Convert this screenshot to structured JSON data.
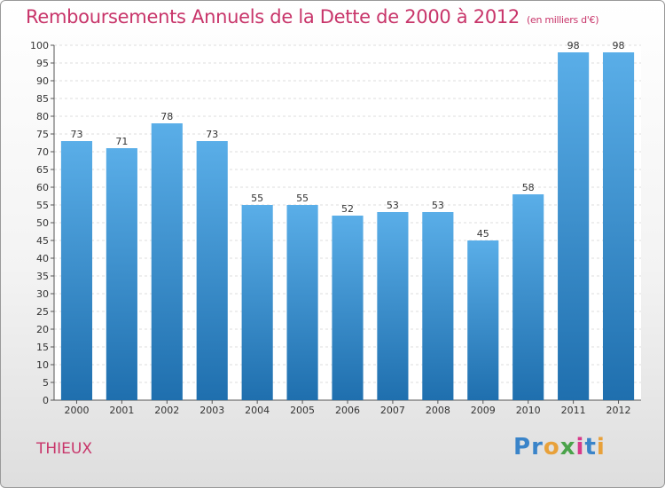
{
  "title": "Remboursements Annuels de la Dette de 2000 à 2012",
  "unit": "(en milliers d'€)",
  "commune": "THIEUX",
  "logo": {
    "text": "Proxiti",
    "letters": [
      "P",
      "r",
      "o",
      "x",
      "i",
      "t",
      "i"
    ],
    "colors": [
      "#3a84c9",
      "#3a84c9",
      "#e8a13a",
      "#4aa34a",
      "#d83a8a",
      "#3a84c9",
      "#e8a13a"
    ]
  },
  "chart_data": {
    "type": "bar",
    "categories": [
      "2000",
      "2001",
      "2002",
      "2003",
      "2004",
      "2005",
      "2006",
      "2007",
      "2008",
      "2009",
      "2010",
      "2011",
      "2012"
    ],
    "values": [
      73,
      71,
      78,
      73,
      55,
      55,
      52,
      53,
      53,
      45,
      58,
      98,
      98
    ],
    "data_labels": [
      "73",
      "71",
      "78",
      "73",
      "55",
      "55",
      "52",
      "53",
      "53",
      "45",
      "58",
      "98",
      "98"
    ],
    "ylim": [
      0,
      100
    ],
    "yticks": [
      0,
      5,
      10,
      15,
      20,
      25,
      30,
      35,
      40,
      45,
      50,
      55,
      60,
      65,
      70,
      75,
      80,
      85,
      90,
      95,
      100
    ],
    "ytick_labels": [
      "0",
      "5",
      "10",
      "15",
      "20",
      "25",
      "30",
      "35",
      "40",
      "45",
      "50",
      "55",
      "60",
      "65",
      "70",
      "75",
      "80",
      "85",
      "90",
      "95",
      "100"
    ],
    "grid": true,
    "bar_color_top": "#5aaee8",
    "bar_color_bottom": "#1f6fae"
  }
}
